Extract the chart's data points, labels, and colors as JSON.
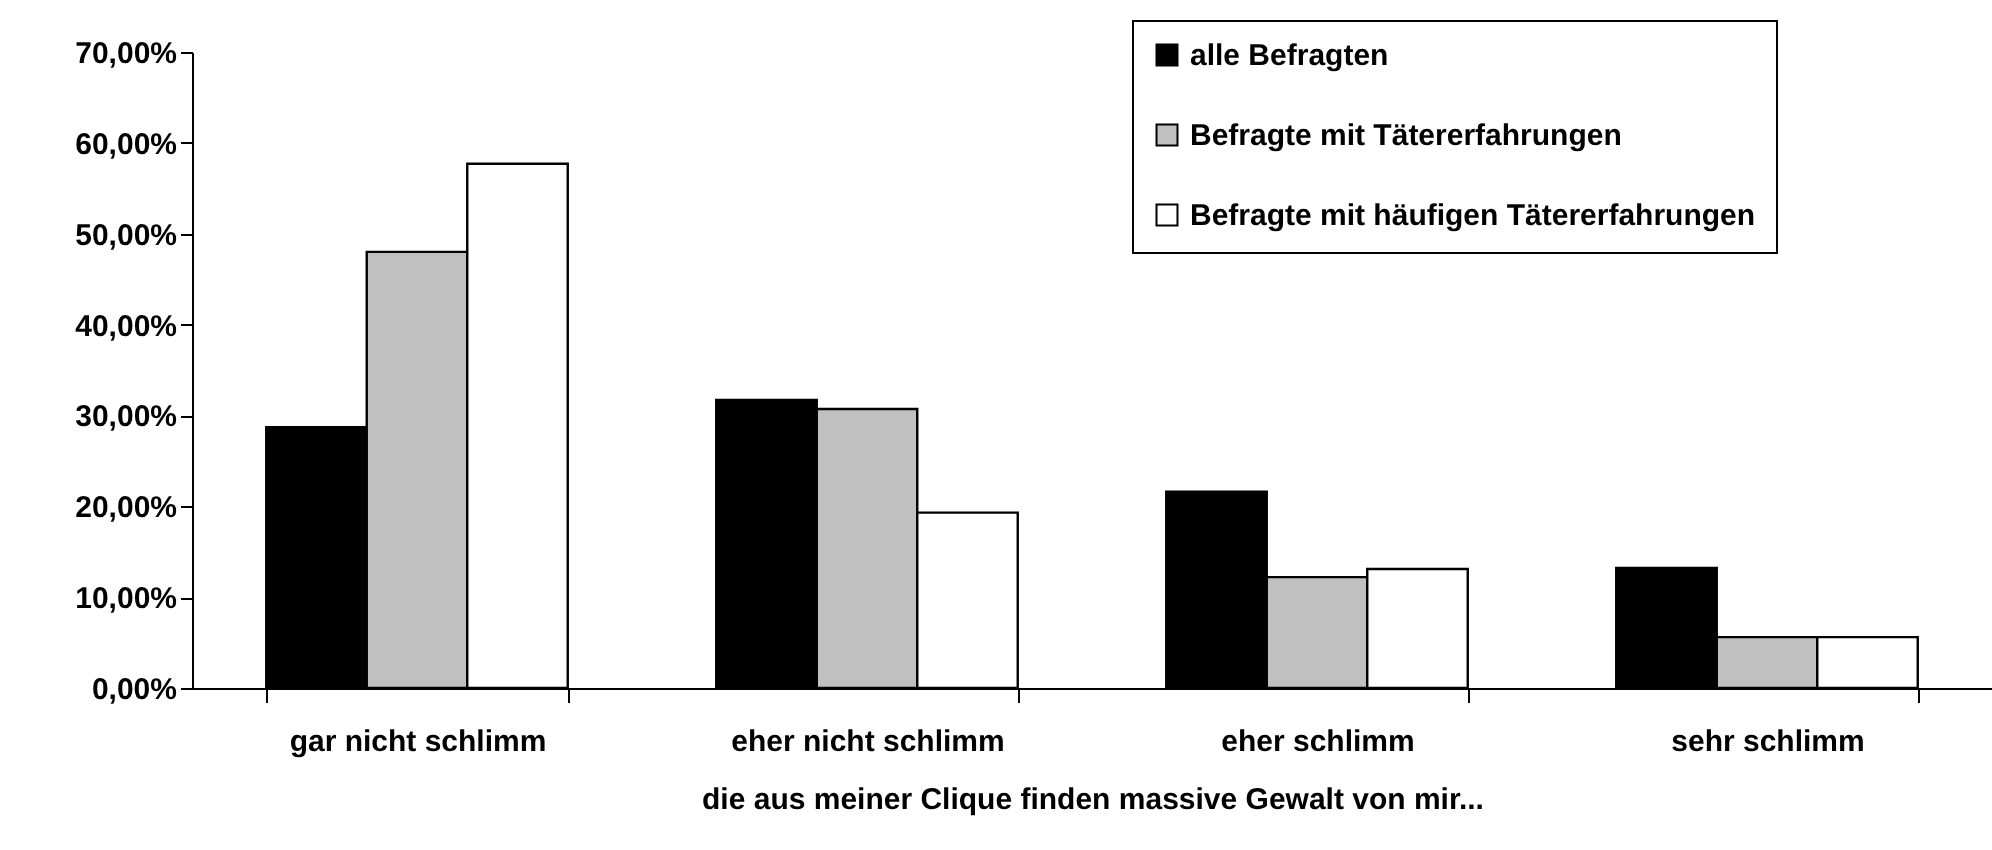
{
  "chart_data": {
    "type": "bar",
    "xlabel": "die aus meiner Clique finden massive Gewalt von mir...",
    "categories": [
      "gar nicht schlimm",
      "eher nicht schlimm",
      "eher schlimm",
      "sehr schlimm"
    ],
    "series": [
      {
        "name": "alle Befragten",
        "color": "#000000",
        "values": [
          28.7,
          31.7,
          21.6,
          13.2
        ]
      },
      {
        "name": "Befragte mit Tätererfahrungen",
        "color": "#c0c0c0",
        "values": [
          48.0,
          30.7,
          12.2,
          5.6
        ]
      },
      {
        "name": "Befragte mit häufigen Tätererfahrungen",
        "color": "#ffffff",
        "values": [
          57.7,
          19.3,
          13.1,
          5.6
        ]
      }
    ],
    "ylim": [
      0,
      70
    ],
    "yticks": [
      {
        "value": 0,
        "label": "0,00%"
      },
      {
        "value": 10,
        "label": "10,00%"
      },
      {
        "value": 20,
        "label": "20,00%"
      },
      {
        "value": 30,
        "label": "30,00%"
      },
      {
        "value": 40,
        "label": "40,00%"
      },
      {
        "value": 50,
        "label": "50,00%"
      },
      {
        "value": 60,
        "label": "60,00%"
      },
      {
        "value": 70,
        "label": "70,00%"
      }
    ],
    "grid": false,
    "legend": "top right"
  }
}
